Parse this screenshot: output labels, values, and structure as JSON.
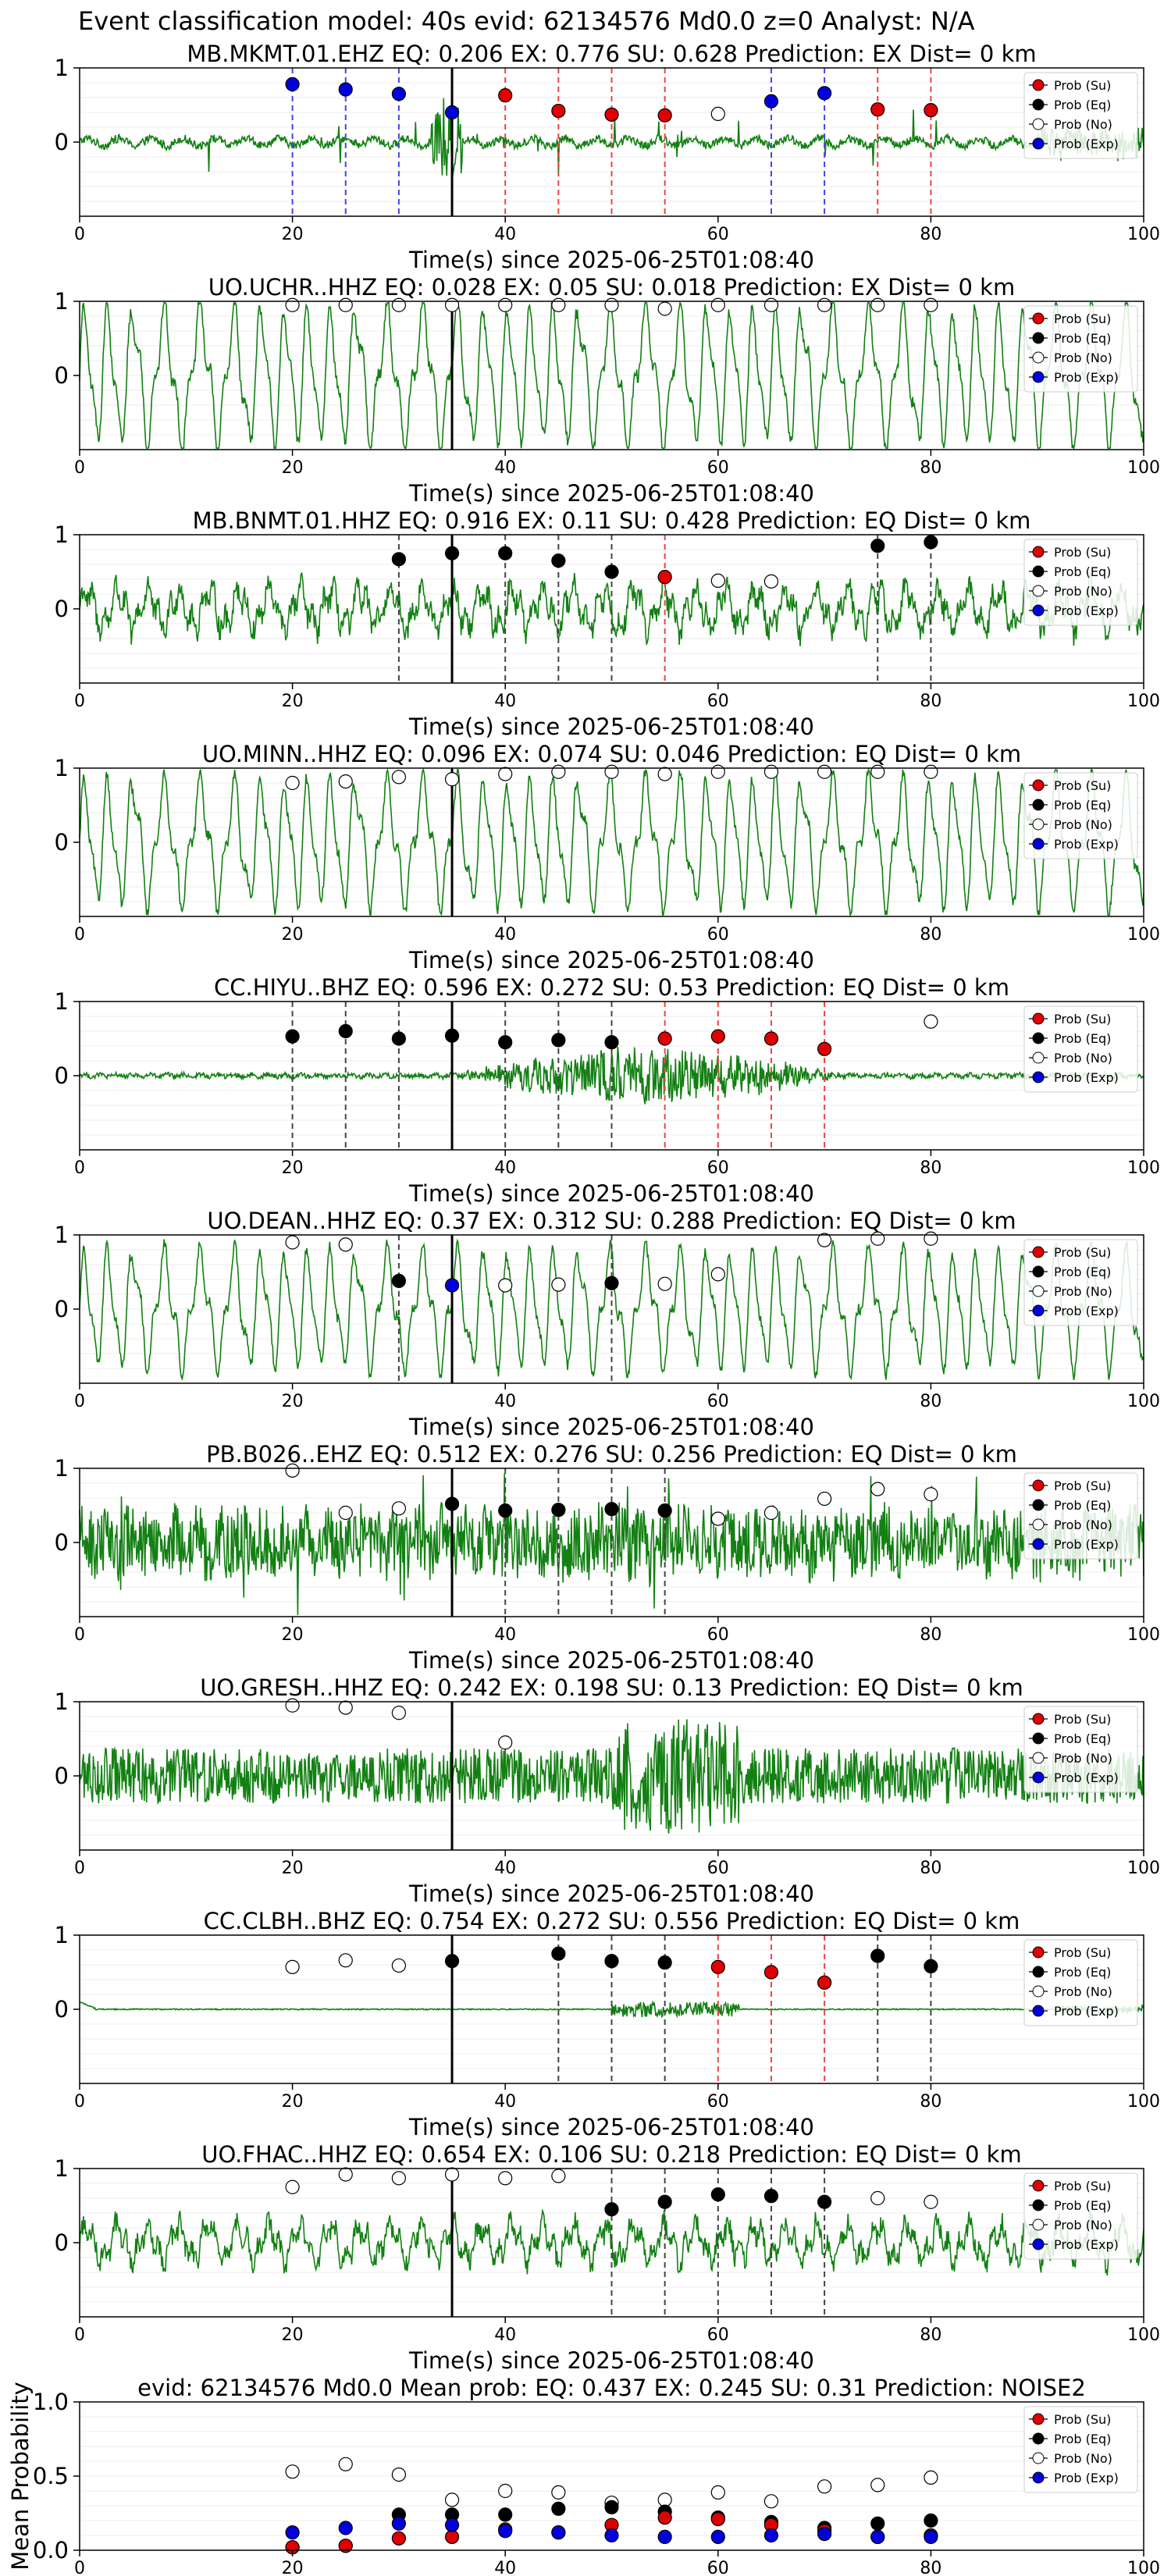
{
  "figure_title": "Event classification model: 40s evid: 62134576 Md0.0 z=0 Analyst: N/A",
  "xlabel": "Time(s) since 2025-06-25T01:08:40",
  "legend": [
    "Prob (Su)",
    "Prob (Eq)",
    "Prob (No)",
    "Prob (Exp)"
  ],
  "colors": {
    "su": "#e00000",
    "eq": "#000000",
    "no": "#ffffff",
    "exp": "#0000dd",
    "trace": "#138013"
  },
  "chart_data": [
    {
      "type": "line",
      "title": "MB.MKMT.01.EHZ   EQ: 0.206  EX: 0.776  SU: 0.628   Prediction: EX    Dist= 0 km",
      "xlim": [
        0,
        100
      ],
      "ylim": [
        -1,
        1
      ],
      "yticks": [
        0,
        1
      ],
      "xticks": [
        0,
        20,
        40,
        60,
        80,
        100
      ],
      "pick_time": 35,
      "style": "spiky",
      "amplitude": 0.3,
      "vlines": [
        [
          20,
          "exp"
        ],
        [
          25,
          "exp"
        ],
        [
          30,
          "exp"
        ],
        [
          40,
          "su"
        ],
        [
          45,
          "su"
        ],
        [
          50,
          "su"
        ],
        [
          55,
          "su"
        ],
        [
          65,
          "exp"
        ],
        [
          70,
          "exp"
        ],
        [
          75,
          "su"
        ],
        [
          80,
          "su"
        ]
      ],
      "points": [
        [
          20,
          0.78,
          "exp"
        ],
        [
          25,
          0.71,
          "exp"
        ],
        [
          30,
          0.65,
          "exp"
        ],
        [
          35,
          0.4,
          "exp"
        ],
        [
          40,
          0.63,
          "su"
        ],
        [
          45,
          0.42,
          "su"
        ],
        [
          50,
          0.37,
          "su"
        ],
        [
          55,
          0.36,
          "su"
        ],
        [
          60,
          0.38,
          "no"
        ],
        [
          65,
          0.55,
          "exp"
        ],
        [
          70,
          0.66,
          "exp"
        ],
        [
          75,
          0.44,
          "su"
        ],
        [
          80,
          0.43,
          "su"
        ]
      ]
    },
    {
      "type": "line",
      "title": "UO.UCHR..HHZ   EQ: 0.028  EX: 0.05  SU: 0.018   Prediction: EX    Dist= 0 km",
      "xlim": [
        0,
        100
      ],
      "ylim": [
        -1,
        1
      ],
      "yticks": [
        0,
        1
      ],
      "xticks": [
        0,
        20,
        40,
        60,
        80,
        100
      ],
      "pick_time": 35,
      "style": "wavy",
      "amplitude": 0.7,
      "vlines": [],
      "points": [
        [
          20,
          0.95,
          "no"
        ],
        [
          25,
          0.95,
          "no"
        ],
        [
          30,
          0.95,
          "no"
        ],
        [
          35,
          0.95,
          "no"
        ],
        [
          40,
          0.95,
          "no"
        ],
        [
          45,
          0.95,
          "no"
        ],
        [
          50,
          0.95,
          "no"
        ],
        [
          55,
          0.9,
          "no"
        ],
        [
          60,
          0.95,
          "no"
        ],
        [
          65,
          0.95,
          "no"
        ],
        [
          70,
          0.95,
          "no"
        ],
        [
          75,
          0.95,
          "no"
        ],
        [
          80,
          0.95,
          "no"
        ]
      ]
    },
    {
      "type": "line",
      "title": "MB.BNMT.01.HHZ   EQ: 0.916  EX: 0.11  SU: 0.428   Prediction: EQ    Dist= 0 km",
      "xlim": [
        0,
        100
      ],
      "ylim": [
        -1,
        1
      ],
      "yticks": [
        0,
        1
      ],
      "xticks": [
        0,
        20,
        40,
        60,
        80,
        100
      ],
      "pick_time": 35,
      "style": "mixed",
      "amplitude": 0.45,
      "vlines": [
        [
          30,
          "eq"
        ],
        [
          40,
          "eq"
        ],
        [
          45,
          "eq"
        ],
        [
          50,
          "eq"
        ],
        [
          55,
          "su"
        ],
        [
          75,
          "eq"
        ],
        [
          80,
          "eq"
        ]
      ],
      "points": [
        [
          30,
          0.67,
          "eq"
        ],
        [
          35,
          0.75,
          "eq"
        ],
        [
          40,
          0.75,
          "eq"
        ],
        [
          45,
          0.65,
          "eq"
        ],
        [
          50,
          0.5,
          "eq"
        ],
        [
          55,
          0.43,
          "su"
        ],
        [
          60,
          0.38,
          "no"
        ],
        [
          65,
          0.37,
          "no"
        ],
        [
          75,
          0.85,
          "eq"
        ],
        [
          80,
          0.9,
          "eq"
        ]
      ]
    },
    {
      "type": "line",
      "title": "UO.MINN..HHZ   EQ: 0.096  EX: 0.074  SU: 0.046   Prediction: EQ    Dist= 0 km",
      "xlim": [
        0,
        100
      ],
      "ylim": [
        -1,
        1
      ],
      "yticks": [
        0,
        1
      ],
      "xticks": [
        0,
        20,
        40,
        60,
        80,
        100
      ],
      "pick_time": 35,
      "style": "wavy",
      "amplitude": 0.65,
      "vlines": [],
      "points": [
        [
          20,
          0.8,
          "no"
        ],
        [
          25,
          0.82,
          "no"
        ],
        [
          30,
          0.88,
          "no"
        ],
        [
          35,
          0.85,
          "no"
        ],
        [
          40,
          0.92,
          "no"
        ],
        [
          45,
          0.95,
          "no"
        ],
        [
          50,
          0.95,
          "no"
        ],
        [
          55,
          0.92,
          "no"
        ],
        [
          60,
          0.95,
          "no"
        ],
        [
          65,
          0.95,
          "no"
        ],
        [
          70,
          0.95,
          "no"
        ],
        [
          75,
          0.95,
          "no"
        ],
        [
          80,
          0.95,
          "no"
        ]
      ]
    },
    {
      "type": "line",
      "title": "CC.HIYU..BHZ   EQ: 0.596  EX: 0.272  SU: 0.53   Prediction: EQ    Dist= 0 km",
      "xlim": [
        0,
        100
      ],
      "ylim": [
        -1,
        1
      ],
      "yticks": [
        0,
        1
      ],
      "xticks": [
        0,
        20,
        40,
        60,
        80,
        100
      ],
      "pick_time": 35,
      "style": "burst",
      "amplitude": 0.4,
      "burst": [
        35,
        72
      ],
      "vlines": [
        [
          20,
          "eq"
        ],
        [
          25,
          "eq"
        ],
        [
          30,
          "eq"
        ],
        [
          40,
          "eq"
        ],
        [
          45,
          "eq"
        ],
        [
          50,
          "eq"
        ],
        [
          55,
          "su"
        ],
        [
          60,
          "su"
        ],
        [
          65,
          "su"
        ],
        [
          70,
          "su"
        ]
      ],
      "points": [
        [
          20,
          0.53,
          "eq"
        ],
        [
          25,
          0.6,
          "eq"
        ],
        [
          30,
          0.5,
          "eq"
        ],
        [
          35,
          0.54,
          "eq"
        ],
        [
          40,
          0.45,
          "eq"
        ],
        [
          45,
          0.48,
          "eq"
        ],
        [
          50,
          0.45,
          "eq"
        ],
        [
          55,
          0.5,
          "su"
        ],
        [
          60,
          0.53,
          "su"
        ],
        [
          65,
          0.5,
          "su"
        ],
        [
          70,
          0.36,
          "su"
        ],
        [
          80,
          0.73,
          "no"
        ]
      ]
    },
    {
      "type": "line",
      "title": "UO.DEAN..HHZ   EQ: 0.37  EX: 0.312  SU: 0.288   Prediction: EQ    Dist= 0 km",
      "xlim": [
        0,
        100
      ],
      "ylim": [
        -1,
        1
      ],
      "yticks": [
        0,
        1
      ],
      "xticks": [
        0,
        20,
        40,
        60,
        80,
        100
      ],
      "pick_time": 35,
      "style": "wavy",
      "amplitude": 0.6,
      "vlines": [
        [
          30,
          "eq"
        ],
        [
          50,
          "eq"
        ]
      ],
      "points": [
        [
          20,
          0.9,
          "no"
        ],
        [
          25,
          0.87,
          "no"
        ],
        [
          30,
          0.38,
          "eq"
        ],
        [
          35,
          0.32,
          "exp"
        ],
        [
          40,
          0.32,
          "no"
        ],
        [
          45,
          0.33,
          "no"
        ],
        [
          50,
          0.35,
          "eq"
        ],
        [
          55,
          0.34,
          "no"
        ],
        [
          60,
          0.47,
          "no"
        ],
        [
          70,
          0.93,
          "no"
        ],
        [
          75,
          0.95,
          "no"
        ],
        [
          80,
          0.95,
          "no"
        ]
      ]
    },
    {
      "type": "line",
      "title": "PB.B026..EHZ   EQ: 0.512  EX: 0.276  SU: 0.256   Prediction: EQ    Dist= 0 km",
      "xlim": [
        0,
        100
      ],
      "ylim": [
        -1,
        1
      ],
      "yticks": [
        0,
        1
      ],
      "xticks": [
        0,
        20,
        40,
        60,
        80,
        100
      ],
      "pick_time": 35,
      "style": "noisy",
      "amplitude": 0.5,
      "vlines": [
        [
          40,
          "eq"
        ],
        [
          45,
          "eq"
        ],
        [
          50,
          "eq"
        ],
        [
          55,
          "eq"
        ]
      ],
      "points": [
        [
          20,
          0.97,
          "no"
        ],
        [
          25,
          0.4,
          "no"
        ],
        [
          30,
          0.46,
          "no"
        ],
        [
          35,
          0.52,
          "eq"
        ],
        [
          40,
          0.43,
          "eq"
        ],
        [
          45,
          0.44,
          "eq"
        ],
        [
          50,
          0.45,
          "eq"
        ],
        [
          55,
          0.43,
          "eq"
        ],
        [
          60,
          0.32,
          "no"
        ],
        [
          65,
          0.4,
          "no"
        ],
        [
          70,
          0.59,
          "no"
        ],
        [
          75,
          0.72,
          "no"
        ],
        [
          80,
          0.65,
          "no"
        ]
      ]
    },
    {
      "type": "line",
      "title": "UO.GRESH..HHZ   EQ: 0.242  EX: 0.198  SU: 0.13   Prediction: EQ    Dist= 0 km",
      "xlim": [
        0,
        100
      ],
      "ylim": [
        -1,
        1
      ],
      "yticks": [
        0,
        1
      ],
      "xticks": [
        0,
        20,
        40,
        60,
        80,
        100
      ],
      "pick_time": 35,
      "style": "dense",
      "amplitude": 0.5,
      "burst": [
        50,
        62
      ],
      "vlines": [],
      "points": [
        [
          20,
          0.95,
          "no"
        ],
        [
          25,
          0.92,
          "no"
        ],
        [
          30,
          0.85,
          "no"
        ],
        [
          40,
          0.45,
          "no"
        ]
      ]
    },
    {
      "type": "line",
      "title": "CC.CLBH..BHZ   EQ: 0.754  EX: 0.272  SU: 0.556   Prediction: EQ    Dist= 0 km",
      "xlim": [
        0,
        100
      ],
      "ylim": [
        -1,
        1
      ],
      "yticks": [
        0,
        1
      ],
      "xticks": [
        0,
        20,
        40,
        60,
        80,
        100
      ],
      "pick_time": 35,
      "style": "quietburst",
      "amplitude": 0.1,
      "burst": [
        50,
        62
      ],
      "vlines": [
        [
          45,
          "eq"
        ],
        [
          50,
          "eq"
        ],
        [
          55,
          "eq"
        ],
        [
          60,
          "su"
        ],
        [
          65,
          "su"
        ],
        [
          70,
          "su"
        ],
        [
          75,
          "eq"
        ],
        [
          80,
          "eq"
        ]
      ],
      "points": [
        [
          20,
          0.57,
          "no"
        ],
        [
          25,
          0.66,
          "no"
        ],
        [
          30,
          0.59,
          "no"
        ],
        [
          35,
          0.65,
          "eq"
        ],
        [
          45,
          0.75,
          "eq"
        ],
        [
          50,
          0.65,
          "eq"
        ],
        [
          55,
          0.63,
          "eq"
        ],
        [
          60,
          0.57,
          "su"
        ],
        [
          65,
          0.5,
          "su"
        ],
        [
          70,
          0.36,
          "su"
        ],
        [
          75,
          0.72,
          "eq"
        ],
        [
          80,
          0.58,
          "eq"
        ]
      ]
    },
    {
      "type": "line",
      "title": "UO.FHAC..HHZ   EQ: 0.654  EX: 0.106  SU: 0.218   Prediction: EQ    Dist= 0 km",
      "xlim": [
        0,
        100
      ],
      "ylim": [
        -1,
        1
      ],
      "yticks": [
        0,
        1
      ],
      "xticks": [
        0,
        20,
        40,
        60,
        80,
        100
      ],
      "pick_time": 35,
      "style": "mixed",
      "amplitude": 0.4,
      "vlines": [
        [
          50,
          "eq"
        ],
        [
          55,
          "eq"
        ],
        [
          60,
          "eq"
        ],
        [
          65,
          "eq"
        ],
        [
          70,
          "eq"
        ]
      ],
      "points": [
        [
          20,
          0.75,
          "no"
        ],
        [
          25,
          0.92,
          "no"
        ],
        [
          30,
          0.87,
          "no"
        ],
        [
          35,
          0.92,
          "no"
        ],
        [
          40,
          0.87,
          "no"
        ],
        [
          45,
          0.9,
          "no"
        ],
        [
          50,
          0.45,
          "eq"
        ],
        [
          55,
          0.55,
          "eq"
        ],
        [
          60,
          0.65,
          "eq"
        ],
        [
          65,
          0.63,
          "eq"
        ],
        [
          70,
          0.55,
          "eq"
        ],
        [
          75,
          0.6,
          "no"
        ],
        [
          80,
          0.55,
          "no"
        ]
      ]
    },
    {
      "type": "scatter",
      "title": "evid: 62134576  Md0.0   Mean prob:   EQ: 0.437  EX: 0.245  SU: 0.31   Prediction: NOISE2",
      "ylabel": "Mean Probability",
      "xlim": [
        0,
        100
      ],
      "ylim": [
        0,
        1
      ],
      "yticks": [
        "0.0",
        "0.5",
        "1.0"
      ],
      "xticks": [
        0,
        20,
        40,
        60,
        80,
        100
      ],
      "series": [
        {
          "name": "Prob (No)",
          "key": "no",
          "x": [
            20,
            25,
            30,
            35,
            40,
            45,
            50,
            55,
            60,
            65,
            70,
            75,
            80
          ],
          "y": [
            0.53,
            0.58,
            0.51,
            0.34,
            0.4,
            0.39,
            0.32,
            0.34,
            0.39,
            0.33,
            0.43,
            0.44,
            0.49
          ]
        },
        {
          "name": "Prob (Eq)",
          "key": "eq",
          "x": [
            20,
            25,
            30,
            35,
            40,
            45,
            50,
            55,
            60,
            65,
            70,
            75,
            80
          ],
          "y": [
            0.02,
            0.03,
            0.24,
            0.24,
            0.24,
            0.28,
            0.29,
            0.26,
            0.22,
            0.19,
            0.15,
            0.18,
            0.2
          ]
        },
        {
          "name": "Prob (Su)",
          "key": "su",
          "x": [
            20,
            25,
            30,
            35,
            40,
            45,
            50,
            55,
            60,
            65,
            70,
            75,
            80
          ],
          "y": [
            0.02,
            0.03,
            0.08,
            0.09,
            0.14,
            0.12,
            0.17,
            0.22,
            0.21,
            0.17,
            0.13,
            0.09,
            0.1
          ]
        },
        {
          "name": "Prob (Exp)",
          "key": "exp",
          "x": [
            20,
            25,
            30,
            35,
            40,
            45,
            50,
            55,
            60,
            65,
            70,
            75,
            80
          ],
          "y": [
            0.12,
            0.15,
            0.18,
            0.17,
            0.13,
            0.12,
            0.1,
            0.09,
            0.09,
            0.1,
            0.11,
            0.09,
            0.09
          ]
        }
      ]
    }
  ]
}
